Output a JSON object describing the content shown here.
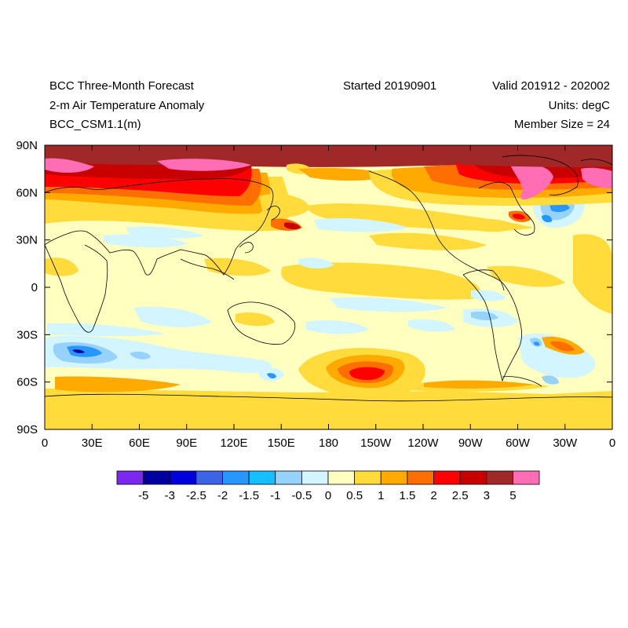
{
  "header": {
    "title": "BCC Three-Month Forecast",
    "variable": "2-m Air Temperature Anomaly",
    "model": "BCC_CSM1.1(m)",
    "started": "Started 20190901",
    "valid": "Valid 201912 - 202002",
    "units": "Units: degC",
    "members": "Member Size = 24"
  },
  "map": {
    "projection": "cylindrical-equidistant",
    "lon_range": [
      0,
      360
    ],
    "lat_range": [
      -90,
      90
    ],
    "lat_ticks": [
      "90N",
      "60N",
      "30N",
      "0",
      "30S",
      "60S",
      "90S"
    ],
    "lon_ticks": [
      "0",
      "30E",
      "60E",
      "90E",
      "120E",
      "150E",
      "180",
      "150W",
      "120W",
      "90W",
      "60W",
      "30W",
      "0"
    ],
    "background_color": "#ffffc0"
  },
  "colorbar": {
    "labels": [
      "-5",
      "-3",
      "-2.5",
      "-2",
      "-1.5",
      "-1",
      "-0.5",
      "0",
      "0.5",
      "1",
      "1.5",
      "2",
      "2.5",
      "3",
      "5"
    ],
    "colors": [
      "#7a28ee",
      "#0000a0",
      "#0000dc",
      "#3c64e6",
      "#2896ff",
      "#14beff",
      "#96d2fa",
      "#d2f5ff",
      "#ffffc0",
      "#ffdc3c",
      "#ffaa00",
      "#ff6e00",
      "#ff0000",
      "#c80000",
      "#a02828",
      "#ff6eb4"
    ]
  }
}
